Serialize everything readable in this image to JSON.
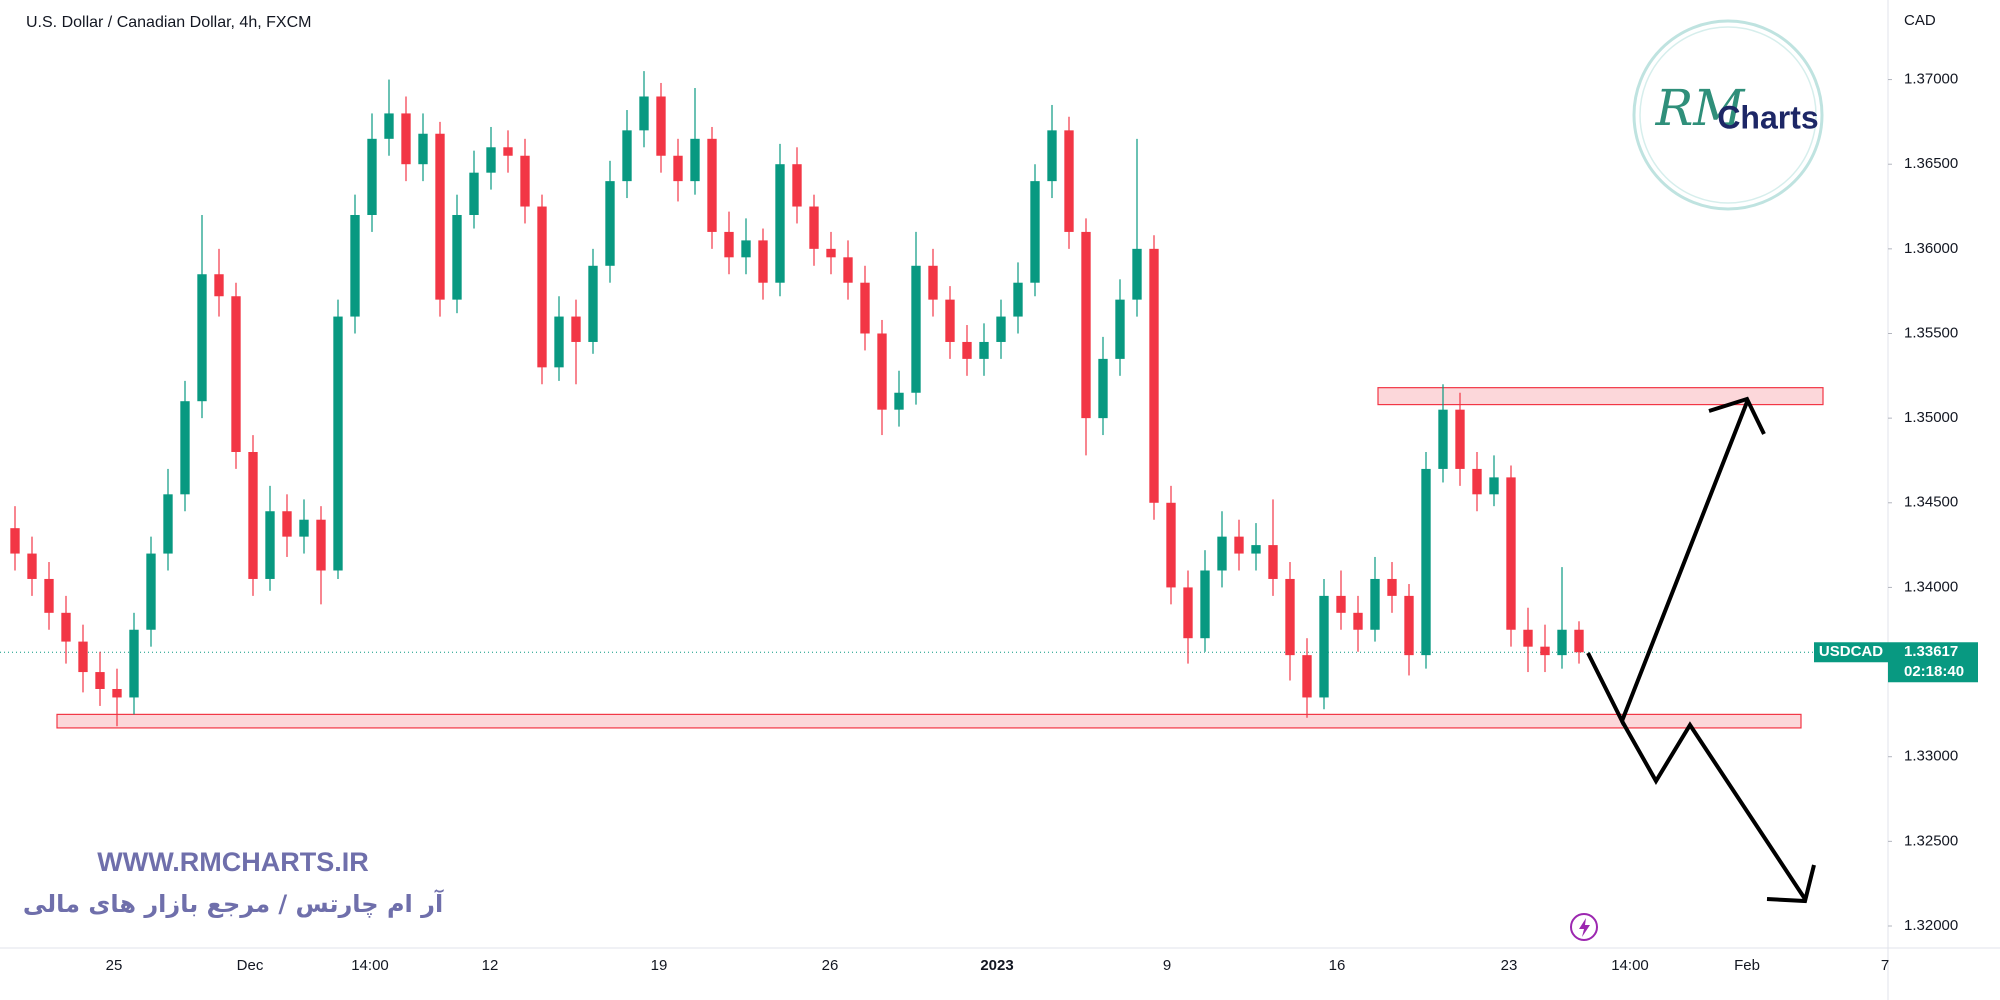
{
  "chart_data": {
    "type": "candlestick",
    "title": "U.S. Dollar / Canadian Dollar, 4h, FXCM",
    "currency_label": "CAD",
    "up_color": "#089981",
    "down_color": "#f23645",
    "series": [
      {
        "open": [
          1.3435,
          1.342,
          1.3405,
          1.3385,
          1.3368,
          1.335,
          1.334,
          1.3335,
          1.3375,
          1.342,
          1.3455,
          1.351,
          1.3585,
          1.3572,
          1.348,
          1.3405,
          1.3445,
          1.343,
          1.344,
          1.341,
          1.356,
          1.362,
          1.3665,
          1.368,
          1.365,
          1.3668,
          1.357,
          1.362,
          1.3645,
          1.366,
          1.3655,
          1.3625,
          1.353,
          1.356,
          1.3545,
          1.359,
          1.364,
          1.367,
          1.369,
          1.3655,
          1.364,
          1.3665,
          1.361,
          1.3595,
          1.3605,
          1.358,
          1.365,
          1.3625,
          1.36,
          1.3595,
          1.358,
          1.355,
          1.3505,
          1.3515,
          1.359,
          1.357,
          1.3545,
          1.3535,
          1.3545,
          1.356,
          1.358,
          1.364,
          1.367,
          1.361,
          1.35,
          1.3535,
          1.357,
          1.36,
          1.345,
          1.34,
          1.337,
          1.341,
          1.343,
          1.342,
          1.3425,
          1.3405,
          1.336,
          1.3335,
          1.3395,
          1.3385,
          1.3375,
          1.3405,
          1.3395,
          1.336,
          1.347,
          1.3505,
          1.347,
          1.3455,
          1.3465,
          1.3375,
          1.3365,
          1.336,
          1.3375
        ],
        "high": [
          1.3448,
          1.343,
          1.3415,
          1.3395,
          1.3378,
          1.3362,
          1.3352,
          1.3385,
          1.343,
          1.347,
          1.3522,
          1.362,
          1.36,
          1.358,
          1.349,
          1.346,
          1.3455,
          1.3452,
          1.3448,
          1.357,
          1.3632,
          1.368,
          1.37,
          1.369,
          1.368,
          1.3675,
          1.3632,
          1.3658,
          1.3672,
          1.367,
          1.3665,
          1.3632,
          1.3572,
          1.357,
          1.36,
          1.3652,
          1.3682,
          1.3705,
          1.3698,
          1.3665,
          1.3695,
          1.3672,
          1.3622,
          1.3618,
          1.3612,
          1.3662,
          1.366,
          1.3632,
          1.361,
          1.3605,
          1.359,
          1.3558,
          1.3528,
          1.361,
          1.36,
          1.3578,
          1.3555,
          1.3556,
          1.357,
          1.3592,
          1.365,
          1.3685,
          1.3678,
          1.3618,
          1.3548,
          1.3582,
          1.3665,
          1.3608,
          1.346,
          1.341,
          1.3422,
          1.3445,
          1.344,
          1.3438,
          1.3452,
          1.3415,
          1.337,
          1.3405,
          1.341,
          1.3395,
          1.3418,
          1.3415,
          1.3402,
          1.348,
          1.352,
          1.3515,
          1.348,
          1.3478,
          1.3472,
          1.3388,
          1.3378,
          1.3412,
          1.338
        ],
        "low": [
          1.341,
          1.3395,
          1.3375,
          1.3355,
          1.3338,
          1.333,
          1.3318,
          1.3325,
          1.3365,
          1.341,
          1.3445,
          1.35,
          1.356,
          1.347,
          1.3395,
          1.3398,
          1.3418,
          1.342,
          1.339,
          1.3405,
          1.355,
          1.361,
          1.3655,
          1.364,
          1.364,
          1.356,
          1.3562,
          1.3612,
          1.3635,
          1.3645,
          1.3615,
          1.352,
          1.3522,
          1.352,
          1.3538,
          1.358,
          1.363,
          1.366,
          1.3645,
          1.3628,
          1.3632,
          1.36,
          1.3585,
          1.3585,
          1.357,
          1.3572,
          1.3615,
          1.359,
          1.3585,
          1.357,
          1.354,
          1.349,
          1.3495,
          1.3508,
          1.356,
          1.3535,
          1.3525,
          1.3525,
          1.3535,
          1.355,
          1.3572,
          1.363,
          1.36,
          1.3478,
          1.349,
          1.3525,
          1.356,
          1.344,
          1.339,
          1.3355,
          1.3362,
          1.34,
          1.341,
          1.341,
          1.3395,
          1.3345,
          1.3323,
          1.3328,
          1.3375,
          1.3362,
          1.3368,
          1.3385,
          1.3348,
          1.3352,
          1.3462,
          1.346,
          1.3445,
          1.3448,
          1.3365,
          1.335,
          1.335,
          1.3352,
          1.3355
        ],
        "close": [
          1.342,
          1.3405,
          1.3385,
          1.3368,
          1.335,
          1.334,
          1.3335,
          1.3375,
          1.342,
          1.3455,
          1.351,
          1.3585,
          1.3572,
          1.348,
          1.3405,
          1.3445,
          1.343,
          1.344,
          1.341,
          1.356,
          1.362,
          1.3665,
          1.368,
          1.365,
          1.3668,
          1.357,
          1.362,
          1.3645,
          1.366,
          1.3655,
          1.3625,
          1.353,
          1.356,
          1.3545,
          1.359,
          1.364,
          1.367,
          1.369,
          1.3655,
          1.364,
          1.3665,
          1.361,
          1.3595,
          1.3605,
          1.358,
          1.365,
          1.3625,
          1.36,
          1.3595,
          1.358,
          1.355,
          1.3505,
          1.3515,
          1.359,
          1.357,
          1.3545,
          1.3535,
          1.3545,
          1.356,
          1.358,
          1.364,
          1.367,
          1.361,
          1.35,
          1.3535,
          1.357,
          1.36,
          1.345,
          1.34,
          1.337,
          1.341,
          1.343,
          1.342,
          1.3425,
          1.3405,
          1.336,
          1.3335,
          1.3395,
          1.3385,
          1.3375,
          1.3405,
          1.3395,
          1.336,
          1.347,
          1.3505,
          1.347,
          1.3455,
          1.3465,
          1.3375,
          1.3365,
          1.336,
          1.3375,
          1.33617
        ]
      }
    ],
    "ylim": [
      1.3187,
      1.3747
    ],
    "yticks": [
      {
        "value": 1.37,
        "label": "1.37000"
      },
      {
        "value": 1.365,
        "label": "1.36500"
      },
      {
        "value": 1.36,
        "label": "1.36000"
      },
      {
        "value": 1.355,
        "label": "1.35500"
      },
      {
        "value": 1.35,
        "label": "1.35000"
      },
      {
        "value": 1.345,
        "label": "1.34500"
      },
      {
        "value": 1.34,
        "label": "1.34000"
      },
      {
        "value": 1.335,
        "label": "1.33500"
      },
      {
        "value": 1.33,
        "label": "1.33000"
      },
      {
        "value": 1.325,
        "label": "1.32500"
      },
      {
        "value": 1.32,
        "label": "1.32000"
      }
    ],
    "x_labels": [
      "25",
      "Dec",
      "14:00",
      "12",
      "19",
      "26",
      "2023",
      "9",
      "16",
      "23",
      "14:00",
      "Feb",
      "7"
    ],
    "zones": [
      {
        "low": 1.3508,
        "high": 1.3518
      },
      {
        "low": 1.3317,
        "high": 1.3325
      }
    ],
    "symbol": "USDCAD",
    "last_price": 1.33617,
    "countdown": "02:18:40"
  },
  "logo": {
    "mark": "RM",
    "text": "Charts"
  },
  "watermark": {
    "url": "WWW.RMCHARTS.IR",
    "tagline": "آر ام چارتس / مرجع بازار های مالی"
  }
}
